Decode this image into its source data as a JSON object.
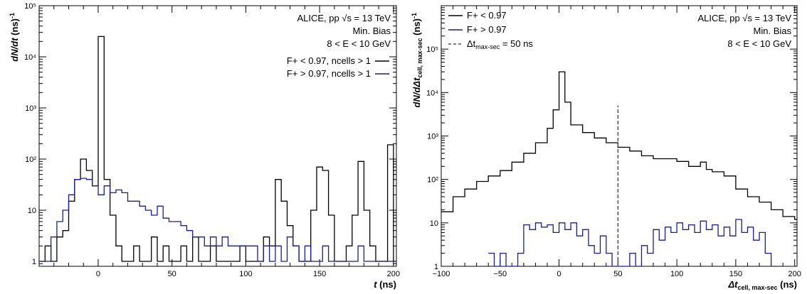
{
  "chart_data": [
    {
      "type": "line",
      "title": "",
      "xlabel_main": "t",
      "xlabel_unit": " (ns)",
      "ylabel_main": "dN/dt",
      "ylabel_unit": " (ns)",
      "ylabel_exp": "-1",
      "xlim": [
        -40,
        202
      ],
      "ylim": [
        0.8,
        100000
      ],
      "log_y": true,
      "x_ticks": [
        "0",
        "50",
        "100",
        "150",
        "200"
      ],
      "y_ticks": [
        "1",
        "10",
        "10²",
        "10³",
        "10⁴",
        "10⁵"
      ],
      "annotations": [
        "ALICE, pp √s = 13 TeV",
        "Min. Bias",
        "8 < E < 10 GeV"
      ],
      "legend_position": "top-right",
      "series": [
        {
          "name": "F+ < 0.97, ncells > 1",
          "color": "#000000",
          "x": [
            -40,
            -36,
            -32,
            -28,
            -24,
            -20,
            -16,
            -12,
            -8,
            -4,
            0,
            4,
            8,
            12,
            16,
            20,
            24,
            28,
            32,
            36,
            40,
            44,
            48,
            52,
            56,
            60,
            64,
            68,
            72,
            76,
            80,
            84,
            88,
            92,
            96,
            100,
            104,
            108,
            112,
            116,
            120,
            124,
            128,
            132,
            136,
            140,
            144,
            148,
            152,
            156,
            160,
            164,
            168,
            172,
            176,
            180,
            184,
            188,
            192,
            196,
            200
          ],
          "y": [
            1,
            2,
            1,
            3,
            4,
            15,
            40,
            100,
            60,
            30,
            25000,
            40,
            8,
            2,
            1,
            1,
            2,
            1,
            1,
            3,
            1,
            2,
            1,
            1,
            2,
            1,
            3,
            1,
            1,
            2,
            1,
            1,
            1,
            1,
            2,
            1,
            1,
            1,
            3,
            2,
            40,
            15,
            5,
            2,
            1,
            1,
            10,
            70,
            60,
            8,
            1,
            1,
            2,
            8,
            90,
            10,
            2,
            1,
            1,
            190,
            1
          ]
        },
        {
          "name": "F+ > 0.97, ncells > 1",
          "color": "#1a1aa8",
          "x": [
            -40,
            -36,
            -32,
            -28,
            -24,
            -20,
            -16,
            -12,
            -8,
            -4,
            0,
            4,
            8,
            12,
            16,
            20,
            24,
            28,
            32,
            36,
            40,
            44,
            48,
            52,
            56,
            60,
            64,
            68,
            72,
            76,
            80,
            84,
            88,
            92,
            96,
            100,
            104,
            108,
            112,
            116,
            120,
            124,
            128,
            132,
            136,
            140,
            144,
            148,
            152,
            156,
            160,
            164,
            168,
            172,
            176,
            180,
            184,
            188,
            192,
            196,
            200
          ],
          "y": [
            1,
            1,
            3,
            6,
            10,
            20,
            40,
            42,
            40,
            30,
            20,
            30,
            22,
            25,
            22,
            15,
            15,
            12,
            10,
            8,
            12,
            7,
            6,
            6,
            5,
            4,
            3,
            3,
            2,
            3,
            2,
            3,
            2,
            2,
            2,
            2,
            2,
            1,
            2,
            1,
            2,
            1,
            3,
            2,
            1,
            2,
            1,
            1,
            2,
            1,
            1,
            1,
            1,
            1,
            2,
            1,
            1,
            1,
            1,
            1,
            1
          ]
        }
      ]
    },
    {
      "type": "line",
      "title": "",
      "xlabel_main": "Δt",
      "xlabel_sub": "cell, max-sec",
      "xlabel_unit": " (ns)",
      "ylabel_main": "dN/dΔt",
      "ylabel_sub": "cell, max-sec",
      "ylabel_unit": " (ns)",
      "ylabel_exp": "-1",
      "xlim": [
        -100,
        202
      ],
      "ylim": [
        1,
        1000000
      ],
      "log_y": true,
      "x_ticks": [
        "−100",
        "−50",
        "0",
        "50",
        "100",
        "150",
        "200"
      ],
      "y_ticks": [
        "1",
        "10",
        "10²",
        "10³",
        "10⁴",
        "10⁵"
      ],
      "annotations": [
        "ALICE, pp √s = 13 TeV",
        "Min. Bias",
        "8 < E < 10 GeV"
      ],
      "legend_position": "top-left",
      "vline": {
        "x": 50,
        "label": "Δt",
        "label_sub": "max-sec",
        "label_rest": " = 50 ns",
        "y_top": 5000
      },
      "series": [
        {
          "name": "F+ < 0.97",
          "color": "#000000",
          "x": [
            -100,
            -90,
            -80,
            -70,
            -60,
            -50,
            -40,
            -30,
            -20,
            -10,
            -5,
            0,
            5,
            10,
            20,
            30,
            40,
            50,
            60,
            70,
            80,
            90,
            100,
            110,
            120,
            125,
            130,
            140,
            150,
            160,
            170,
            180,
            190,
            200
          ],
          "y": [
            18,
            40,
            60,
            90,
            120,
            160,
            250,
            400,
            700,
            1500,
            4000,
            30000,
            6000,
            1800,
            1200,
            900,
            700,
            550,
            450,
            350,
            300,
            300,
            260,
            200,
            250,
            170,
            150,
            120,
            60,
            40,
            30,
            20,
            14,
            12
          ]
        },
        {
          "name": "F+ > 0.97",
          "color": "#1a1aa8",
          "x": [
            -60,
            -55,
            -50,
            -45,
            -40,
            -35,
            -30,
            -25,
            -20,
            -15,
            -10,
            -5,
            0,
            5,
            10,
            15,
            20,
            25,
            30,
            35,
            40,
            45,
            50,
            55,
            60,
            65,
            70,
            75,
            80,
            85,
            90,
            95,
            100,
            105,
            110,
            115,
            120,
            125,
            130,
            135,
            140,
            145,
            150,
            155,
            160,
            165,
            170,
            175,
            180
          ],
          "y": [
            2,
            1,
            2,
            1,
            1,
            2,
            9,
            7,
            10,
            8,
            9,
            6,
            10,
            7,
            10,
            5,
            7,
            3,
            2,
            5,
            2,
            1,
            1,
            1,
            2,
            1,
            3,
            2,
            7,
            4,
            8,
            6,
            10,
            7,
            9,
            6,
            11,
            7,
            9,
            5,
            8,
            5,
            12,
            6,
            8,
            4,
            6,
            2,
            1
          ]
        }
      ]
    }
  ]
}
